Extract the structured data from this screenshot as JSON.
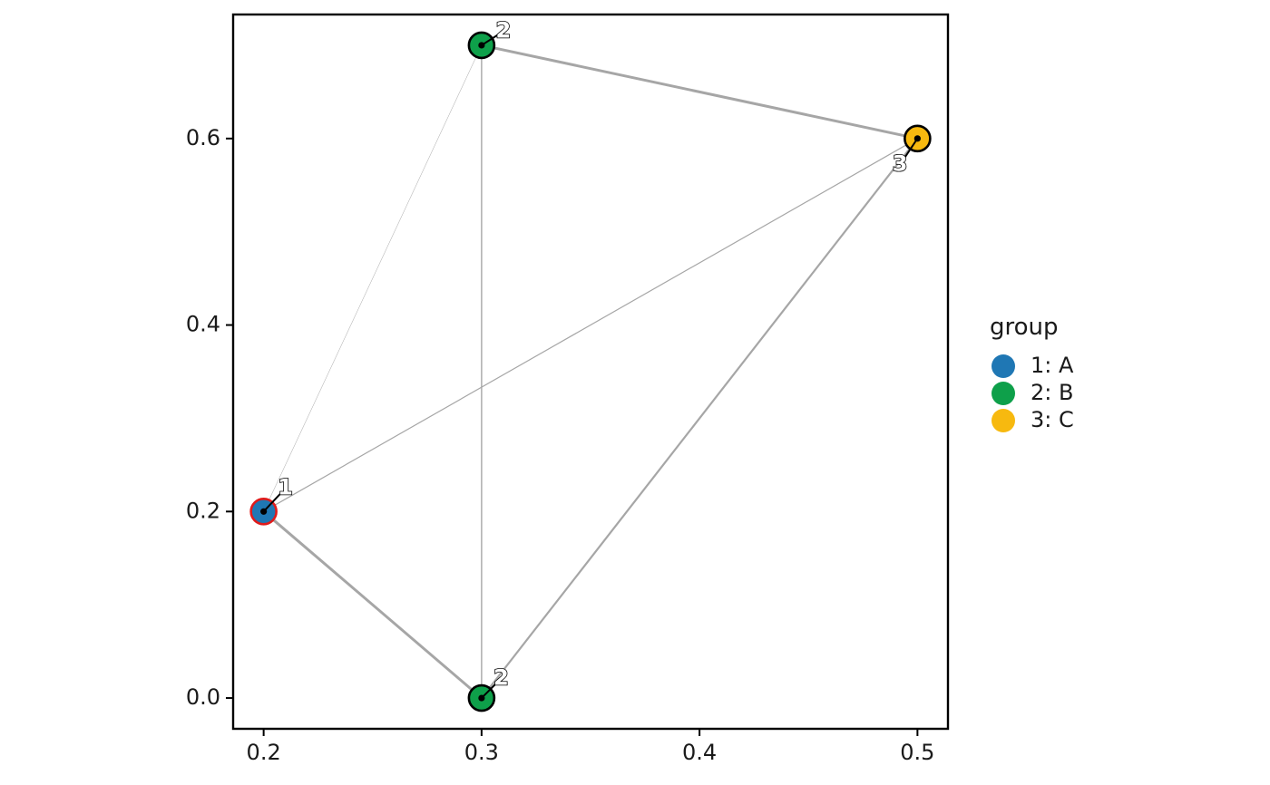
{
  "chart_data": {
    "type": "scatter",
    "subtype": "network-graph",
    "title": "",
    "xlabel": "",
    "ylabel": "",
    "xlim": [
      0.186,
      0.514
    ],
    "ylim": [
      -0.033,
      0.733
    ],
    "x_ticks": [
      0.2,
      0.3,
      0.4,
      0.5
    ],
    "x_tick_labels": [
      "0.2",
      "0.3",
      "0.4",
      "0.5"
    ],
    "y_ticks": [
      0.0,
      0.2,
      0.4,
      0.6
    ],
    "y_tick_labels": [
      "0.0",
      "0.2",
      "0.4",
      "0.6"
    ],
    "grid": false,
    "legend": {
      "title": "group",
      "placement": "right",
      "entries": [
        {
          "label": "1: A",
          "color": "#1f77b4"
        },
        {
          "label": "2: B",
          "color": "#0ea04a"
        },
        {
          "label": "3: C",
          "color": "#f7b90f"
        }
      ]
    },
    "nodes": [
      {
        "label": "1",
        "group": "1: A",
        "x": 0.2,
        "y": 0.2,
        "fill": "#1f77b4",
        "outline": "#e01b1b",
        "label_dx": 0.01,
        "label_dy": 0.025
      },
      {
        "label": "2",
        "group": "2: B",
        "x": 0.3,
        "y": 0.7,
        "fill": "#0ea04a",
        "outline": "#000000",
        "label_dx": 0.01,
        "label_dy": 0.015
      },
      {
        "label": "2",
        "group": "2: B",
        "x": 0.3,
        "y": 0.0,
        "fill": "#0ea04a",
        "outline": "#000000",
        "label_dx": 0.009,
        "label_dy": 0.021
      },
      {
        "label": "3",
        "group": "3: C",
        "x": 0.5,
        "y": 0.6,
        "fill": "#f7b90f",
        "outline": "#000000",
        "label_dx": -0.008,
        "label_dy": -0.028
      }
    ],
    "edges": [
      {
        "from": 0,
        "to": 1,
        "weight": 0.5
      },
      {
        "from": 0,
        "to": 2,
        "weight": 3
      },
      {
        "from": 0,
        "to": 3,
        "weight": 1.2
      },
      {
        "from": 1,
        "to": 2,
        "weight": 1.4
      },
      {
        "from": 1,
        "to": 3,
        "weight": 3
      },
      {
        "from": 2,
        "to": 3,
        "weight": 2.2
      }
    ],
    "colors": {
      "edge": "#a6a6a6",
      "panel_border": "#000000",
      "center_dot": "#000000"
    }
  }
}
